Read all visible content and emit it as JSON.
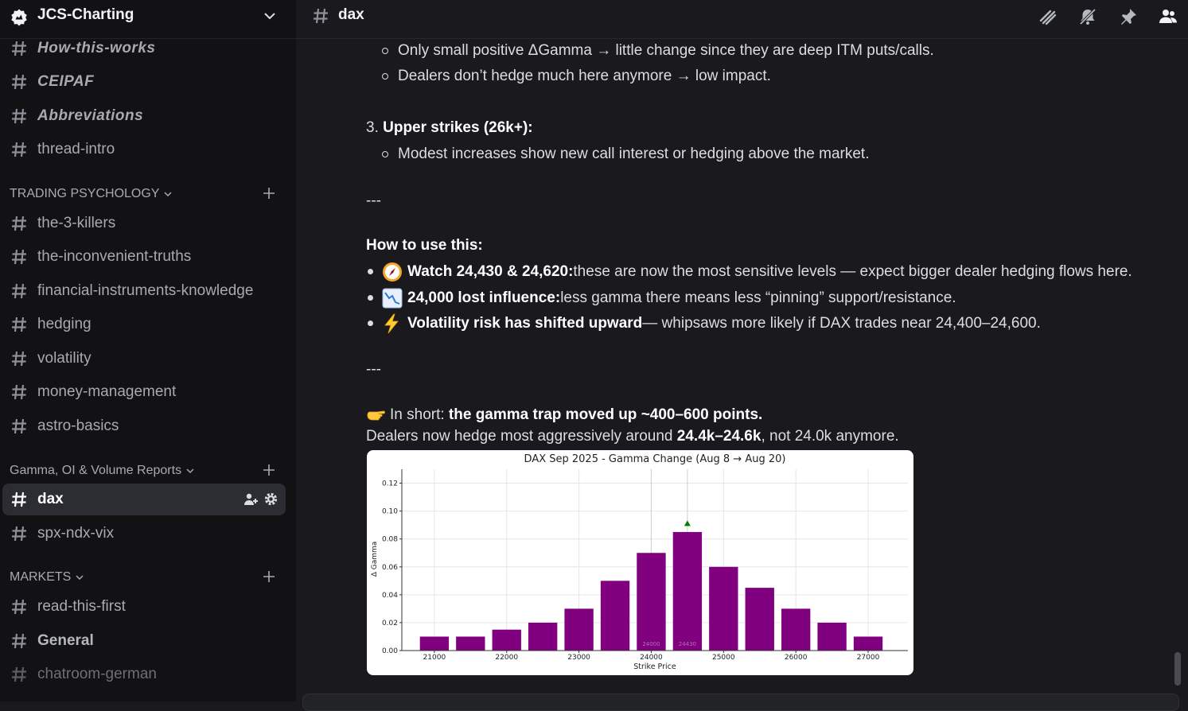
{
  "server": {
    "name": "JCS-Charting"
  },
  "sidebar": {
    "channels_top": [
      {
        "label": "How-this-works",
        "style": "bolditalic"
      },
      {
        "label": "CEIPAF",
        "style": "bolditalic"
      },
      {
        "label": "Abbreviations",
        "style": "bolditalic"
      },
      {
        "label": "thread-intro",
        "style": "normal"
      }
    ],
    "categories": [
      {
        "label": "TRADING PSYCHOLOGY",
        "channels": [
          "the-3-killers",
          "the-inconvenient-truths",
          "financial-instruments-knowledge",
          "hedging",
          "volatility",
          "money-management",
          "astro-basics"
        ]
      },
      {
        "label": "Gamma, OI & Volume Reports",
        "channels": [
          "dax",
          "spx-ndx-vix"
        ]
      },
      {
        "label": "MARKETS",
        "channels": [
          "read-this-first",
          "General",
          "chatroom-german"
        ]
      }
    ],
    "active_channel": "dax"
  },
  "header": {
    "channel_title": "dax"
  },
  "message": {
    "sub1": "Only small positive ΔGamma → little change since they are deep ITM puts/calls.",
    "sub2": "Dealers don’t hedge much here anymore → low impact.",
    "item3_num": "3. ",
    "item3_title": "Upper strikes (26k+):",
    "sub3": "Modest increases show new call interest or hedging above the market.",
    "divider": "---",
    "howto_title": "How to use this:",
    "b1_bold": "Watch 24,430 & 24,620:",
    "b1_text": " these are now the most sensitive levels — expect bigger dealer hedging flows here.",
    "b2_bold": "24,000 lost influence:",
    "b2_text": " less gamma there means less “pinning” support/resistance.",
    "b3_bold": "Volatility risk has shifted upward",
    "b3_text": " — whipsaws more likely if DAX trades near 24,400–24,600.",
    "short_pre": "In short: ",
    "short_bold": "the gamma trap moved up ~400–600 points.",
    "dealers_pre": "Dealers now hedge most aggressively around ",
    "dealers_bold": "24.4k–24.6k",
    "dealers_post": ", not 24.0k anymore."
  },
  "colors": {
    "bar": "#800080",
    "marker": "#008000"
  },
  "chart_data": {
    "type": "bar",
    "title": "DAX Sep 2025 - Gamma Change (Aug 8 → Aug 20)",
    "xlabel": "Strike Price",
    "ylabel": "Δ Gamma",
    "x": [
      21000,
      21500,
      22000,
      22500,
      23000,
      23500,
      24000,
      24500,
      25000,
      25500,
      26000,
      26500,
      27000
    ],
    "values": [
      0.01,
      0.01,
      0.015,
      0.02,
      0.03,
      0.05,
      0.07,
      0.085,
      0.06,
      0.045,
      0.03,
      0.02,
      0.01
    ],
    "xticks": [
      21000,
      22000,
      23000,
      24000,
      25000,
      26000,
      27000
    ],
    "yticks": [
      0.0,
      0.02,
      0.04,
      0.06,
      0.08,
      0.1,
      0.12
    ],
    "ylim": [
      0,
      0.13
    ],
    "xlim": [
      20550,
      27550
    ],
    "bar_labels": [
      {
        "x": 24000,
        "text": "24000"
      },
      {
        "x": 24500,
        "text": "24430"
      }
    ],
    "marker_x": 24500,
    "marker_y": 0.091,
    "grid": true
  }
}
